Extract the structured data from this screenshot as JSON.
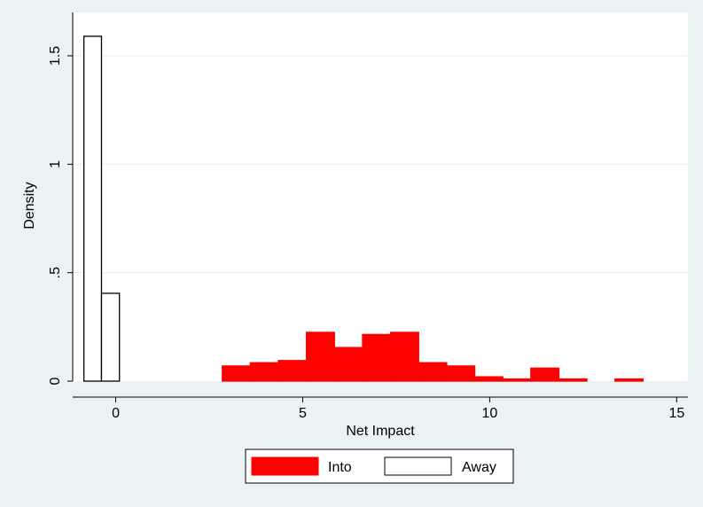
{
  "chart_data": {
    "type": "bar",
    "title": "",
    "xlabel": "Net Impact",
    "ylabel": "Density",
    "xlim": [
      -1.15,
      15.3
    ],
    "ylim": [
      0,
      1.7
    ],
    "x_ticks": [
      {
        "value": 0,
        "label": "0"
      },
      {
        "value": 5,
        "label": "5"
      },
      {
        "value": 10,
        "label": "10"
      },
      {
        "value": 15,
        "label": "15"
      }
    ],
    "y_ticks": [
      {
        "value": 0,
        "label": "0"
      },
      {
        "value": 0.5,
        "label": ".5"
      },
      {
        "value": 1,
        "label": "1"
      },
      {
        "value": 1.5,
        "label": "1.5"
      }
    ],
    "grid": true,
    "legend_position": "bottom",
    "series": [
      {
        "name": "Into",
        "fill": "#ff0000",
        "stroke": "#ff0000",
        "bins": [
          {
            "x0": 2.85,
            "x1": 3.6,
            "y": 0.07
          },
          {
            "x0": 3.6,
            "x1": 4.35,
            "y": 0.085
          },
          {
            "x0": 4.35,
            "x1": 5.1,
            "y": 0.095
          },
          {
            "x0": 5.1,
            "x1": 5.85,
            "y": 0.225
          },
          {
            "x0": 5.85,
            "x1": 6.6,
            "y": 0.155
          },
          {
            "x0": 6.6,
            "x1": 7.35,
            "y": 0.215
          },
          {
            "x0": 7.35,
            "x1": 8.1,
            "y": 0.225
          },
          {
            "x0": 8.1,
            "x1": 8.85,
            "y": 0.085
          },
          {
            "x0": 8.85,
            "x1": 9.6,
            "y": 0.07
          },
          {
            "x0": 9.6,
            "x1": 10.35,
            "y": 0.02
          },
          {
            "x0": 10.35,
            "x1": 11.1,
            "y": 0.01
          },
          {
            "x0": 11.1,
            "x1": 11.85,
            "y": 0.06
          },
          {
            "x0": 11.85,
            "x1": 12.6,
            "y": 0.01
          },
          {
            "x0": 13.35,
            "x1": 14.1,
            "y": 0.01
          }
        ]
      },
      {
        "name": "Away",
        "fill": "#ffffff",
        "stroke": "#000000",
        "bins": [
          {
            "x0": -0.85,
            "x1": -0.38,
            "y": 1.59
          },
          {
            "x0": -0.38,
            "x1": 0.1,
            "y": 0.405
          }
        ]
      }
    ]
  }
}
